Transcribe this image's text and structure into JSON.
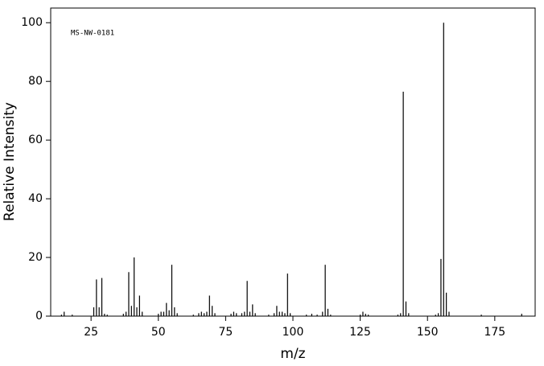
{
  "chart_data": {
    "type": "stick",
    "annotation": "MS-NW-0181",
    "xlabel": "m/z",
    "ylabel": "Relative Intensity",
    "x": [
      14,
      15,
      18,
      26,
      27,
      28,
      29,
      30,
      31,
      37,
      38,
      39,
      40,
      41,
      42,
      43,
      44,
      50,
      51,
      52,
      53,
      54,
      55,
      56,
      57,
      63,
      65,
      66,
      67,
      68,
      69,
      70,
      71,
      77,
      78,
      79,
      81,
      82,
      83,
      84,
      85,
      86,
      91,
      93,
      94,
      95,
      96,
      97,
      98,
      99,
      105,
      107,
      109,
      111,
      112,
      113,
      114,
      125,
      126,
      127,
      128,
      139,
      140,
      141,
      142,
      143,
      153,
      154,
      155,
      156,
      157,
      158,
      170,
      185
    ],
    "values": [
      0.5,
      1.5,
      0.5,
      3,
      12.5,
      3,
      13,
      0.8,
      0.5,
      0.8,
      1.5,
      15,
      3.5,
      20,
      3,
      7,
      1.5,
      0.8,
      1.5,
      1.5,
      4.5,
      2,
      17.5,
      3,
      1,
      0.5,
      1,
      1.5,
      1,
      1.5,
      7,
      3.5,
      1,
      0.8,
      1.5,
      1,
      1,
      1.5,
      12,
      1.5,
      4,
      1,
      0.5,
      1,
      3.5,
      1.5,
      1.5,
      1,
      14.5,
      1,
      0.5,
      0.8,
      0.5,
      1.5,
      17.5,
      2.5,
      0.5,
      0.5,
      1.5,
      0.8,
      0.5,
      0.5,
      1,
      76.5,
      5,
      1,
      0.5,
      1,
      19.5,
      100,
      8,
      1.5,
      0.5,
      0.8
    ],
    "color": "#000000",
    "xlim": [
      10,
      190
    ],
    "xticks": [
      25,
      50,
      75,
      100,
      125,
      150,
      175
    ],
    "ylim": [
      0,
      105
    ],
    "yticks": [
      0,
      20,
      40,
      60,
      80,
      100
    ]
  }
}
